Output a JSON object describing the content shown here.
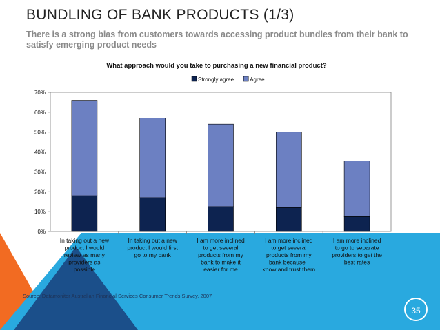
{
  "slide": {
    "title": "BUNDLING OF BANK PRODUCTS (1/3)",
    "subtitle": "There is a strong bias from customers towards accessing product bundles from their bank to satisfy emerging product needs",
    "source": "Source: Datamonitor Australian Financial Services Consumer Trends Survey, 2007",
    "page_number": "35"
  },
  "colors": {
    "strongly_agree": "#0d2350",
    "agree": "#6c80c2",
    "orange": "#f26b22",
    "cyan": "#29a9df",
    "dark_blue": "#1b4f8a"
  },
  "chart_data": {
    "type": "bar",
    "stacked": true,
    "title": "What approach would you take to purchasing a new financial product?",
    "categories": [
      [
        "In taking out a new",
        "product I would",
        "review as many",
        "providers as",
        "possible"
      ],
      [
        "In taking out a new",
        "product I would first",
        "go to my bank"
      ],
      [
        "I am more inclined",
        "to get several",
        "products from my",
        "bank to make it",
        "easier for me"
      ],
      [
        "I am more inclined",
        "to get several",
        "products from my",
        "bank because I",
        "know and trust them"
      ],
      [
        "I am more inclined",
        "to go to separate",
        "providers to get the",
        "best rates"
      ]
    ],
    "series": [
      {
        "name": "Strongly agree",
        "values": [
          18,
          17,
          12.5,
          12,
          7.5
        ]
      },
      {
        "name": "Agree",
        "values": [
          48,
          40,
          41.5,
          38,
          28
        ]
      }
    ],
    "ylim": [
      0,
      70
    ],
    "yticks": [
      "0%",
      "10%",
      "20%",
      "30%",
      "40%",
      "50%",
      "60%",
      "70%"
    ],
    "legend": [
      "Strongly agree",
      "Agree"
    ],
    "legend_position": "top"
  }
}
